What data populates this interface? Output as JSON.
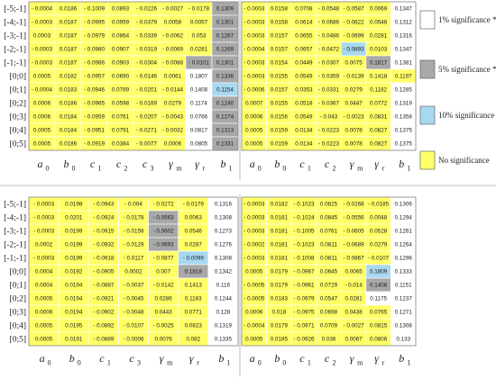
{
  "chart_data": {
    "type": "heatmap",
    "row_labels": [
      "[-5;-1]",
      "[-4;-1]",
      "[-3;-1]",
      "[-2;-1]",
      "[-1;-1]",
      "[0;0]",
      "[0;1]",
      "[0;2]",
      "[0;3]",
      "[0;4]",
      "[0;5]"
    ],
    "col_labels": [
      {
        "base": "a",
        "sub": "0"
      },
      {
        "base": "b",
        "sub": "0"
      },
      {
        "base": "c",
        "sub": "1"
      },
      {
        "base": "c",
        "sub": "2"
      },
      {
        "base": "c",
        "sub": "3"
      },
      {
        "base": "γ",
        "sub": "m"
      },
      {
        "base": "γ",
        "sub": "r"
      },
      {
        "base": "b",
        "sub": "1"
      }
    ],
    "legend": [
      {
        "key": "sig1",
        "label": "1% significance ***",
        "color": "#ffffff"
      },
      {
        "key": "sig5",
        "label": "5% significance **",
        "color": "#a8a8a8"
      },
      {
        "key": "sig10",
        "label": "10% significance *",
        "color": "#a8d8f0"
      },
      {
        "key": "none",
        "label": "No significance",
        "color": "#ffff66"
      }
    ],
    "panels": [
      {
        "name": "top-left",
        "values": [
          [
            "- 0.0004",
            "0.0186",
            "- 0.1009",
            "0.0893",
            "- 0.0226",
            "- 0.0027",
            "- 0.0178",
            "0.1309"
          ],
          [
            "- 0.0003",
            "0.0187",
            "- 0.0995",
            "0.0959",
            "- 0.0379",
            "0.0058",
            "0.0057",
            "0.1301"
          ],
          [
            "0.0003",
            "0.0187",
            "- 0.0979",
            "0.0864",
            "- 0.0339",
            "- 0.0062",
            "0.053",
            "0.1267"
          ],
          [
            "- 0.0003",
            "0.0187",
            "- 0.0980",
            "0.0907",
            "- 0.0319",
            "- 0.0069",
            "0.0281",
            "0.1269"
          ],
          [
            "- 0.0003",
            "0.0187",
            "- 0.0986",
            "0.0903",
            "- 0.0304",
            "- 0.0088",
            "- 0.0101",
            "0.1301"
          ],
          [
            "0.0005",
            "0.0182",
            "- 0.0957",
            "0.0690",
            "- 0.0146",
            "0.0061",
            "0.1807",
            "0.1336"
          ],
          [
            "- 0.0004",
            "0.0183",
            "- 0.0946",
            "0.0789",
            "- 0.0201",
            "- 0.0144",
            "0.1408",
            "0.1154"
          ],
          [
            "0.0006",
            "0.0186",
            "- 0.0965",
            "0.0598",
            "- 0.0169",
            "0.0279",
            "0.1174",
            "0.1240"
          ],
          [
            "0.0006",
            "0.0184",
            "- 0.0959",
            "0.0761",
            "- 0.0207",
            "- 0.0043",
            "0.0766",
            "0.1274"
          ],
          [
            "0.0005",
            "0.0184",
            "- 0.0951",
            "0.0791",
            "- 0.0271",
            "- 0.0032",
            "0.0817",
            "0.1313"
          ],
          [
            "0.0005",
            "0.0186",
            "- 0.0919",
            "0.0384",
            "- 0.0077",
            "0.0006",
            "0.0805",
            "0.1331"
          ]
        ],
        "significance": [
          [
            "none",
            "none",
            "none",
            "none",
            "none",
            "none",
            "none",
            "sig5"
          ],
          [
            "none",
            "none",
            "none",
            "none",
            "none",
            "none",
            "none",
            "sig5"
          ],
          [
            "none",
            "none",
            "none",
            "none",
            "none",
            "none",
            "none",
            "sig5"
          ],
          [
            "none",
            "none",
            "none",
            "none",
            "none",
            "none",
            "none",
            "sig5"
          ],
          [
            "none",
            "none",
            "none",
            "none",
            "none",
            "none",
            "sig5",
            "sig5"
          ],
          [
            "none",
            "none",
            "none",
            "none",
            "none",
            "none",
            "sig1",
            "sig5"
          ],
          [
            "none",
            "none",
            "none",
            "none",
            "none",
            "none",
            "sig1",
            "sig10"
          ],
          [
            "none",
            "none",
            "none",
            "none",
            "none",
            "none",
            "sig1",
            "sig5"
          ],
          [
            "none",
            "none",
            "none",
            "none",
            "none",
            "none",
            "sig1",
            "sig5"
          ],
          [
            "none",
            "none",
            "none",
            "none",
            "none",
            "none",
            "sig1",
            "sig5"
          ],
          [
            "none",
            "none",
            "none",
            "none",
            "none",
            "none",
            "sig1",
            "sig5"
          ]
        ]
      },
      {
        "name": "top-right",
        "values": [
          [
            "- 0.0003",
            "0.0158",
            "0.0708",
            "- 0.0548",
            "- 0.0587",
            "0.0069",
            "0.1347"
          ],
          [
            "- 0.0003",
            "0.0158",
            "0.0614",
            "- 0.0686",
            "- 0.0622",
            "0.0546",
            "0.1312"
          ],
          [
            "- 0.0003",
            "0.0157",
            "0.0655",
            "- 0.0486",
            "- 0.0699",
            "0.0281",
            "0.1316"
          ],
          [
            "- 0.0004",
            "0.0157",
            "0.0657",
            "- 0.0472",
            "- 0.0893",
            "0.0103",
            "0.1347"
          ],
          [
            "- 0.0003",
            "0.0154",
            "0.0449",
            "- 0.0307",
            "0.0075",
            "0.1817",
            "0.1381"
          ],
          [
            "- 0.0003",
            "0.0155",
            "0.0549",
            "- 0.0359",
            "- 0.0139",
            "0.1418",
            "0.1197"
          ],
          [
            "- 0.0006",
            "0.0157",
            "0.0353",
            "- 0.0331",
            "0.0279",
            "0.1182",
            "0.1285"
          ],
          [
            "0.0007",
            "0.0155",
            "0.0518",
            "- 0.0367",
            "0.0447",
            "0.0772",
            "0.1319"
          ],
          [
            "0.0006",
            "0.0156",
            "0.0549",
            "- 0.043",
            "- 0.0023",
            "0.0831",
            "0.1358"
          ],
          [
            "0.0005",
            "0.0159",
            "0.0134",
            "- 0.0223",
            "0.0078",
            "0.0827",
            "0.1375"
          ],
          [
            "0.0005",
            "0.0159",
            "0.0134",
            "- 0.0223",
            "0.0078",
            "0.0827",
            "0.1375"
          ]
        ],
        "col_labels": [
          {
            "base": "a",
            "sub": "0"
          },
          {
            "base": "b",
            "sub": "0"
          },
          {
            "base": "c",
            "sub": "1"
          },
          {
            "base": "c",
            "sub": "2"
          },
          {
            "base": "γ",
            "sub": "m"
          },
          {
            "base": "γ",
            "sub": "r"
          },
          {
            "base": "b",
            "sub": "1"
          }
        ],
        "significance": [
          [
            "none",
            "none",
            "none",
            "none",
            "none",
            "none",
            "sig1"
          ],
          [
            "none",
            "none",
            "none",
            "none",
            "none",
            "none",
            "sig1"
          ],
          [
            "none",
            "none",
            "none",
            "none",
            "none",
            "none",
            "sig1"
          ],
          [
            "none",
            "none",
            "none",
            "none",
            "sig10",
            "none",
            "sig1"
          ],
          [
            "none",
            "none",
            "none",
            "none",
            "none",
            "sig5",
            "sig1"
          ],
          [
            "none",
            "none",
            "none",
            "none",
            "none",
            "none",
            "none"
          ],
          [
            "none",
            "none",
            "none",
            "none",
            "none",
            "none",
            "sig1"
          ],
          [
            "none",
            "none",
            "none",
            "none",
            "none",
            "none",
            "sig1"
          ],
          [
            "none",
            "none",
            "none",
            "none",
            "none",
            "none",
            "sig1"
          ],
          [
            "none",
            "none",
            "none",
            "none",
            "none",
            "none",
            "sig1"
          ],
          [
            "none",
            "none",
            "none",
            "none",
            "none",
            "none",
            "sig1"
          ]
        ]
      },
      {
        "name": "bottom-left",
        "values": [
          [
            "- 0.0003",
            "0.0198",
            "- 0.0943",
            "- 0.004",
            "- 0.0272",
            "- 0.0179",
            "0.1316"
          ],
          [
            "- 0.0003",
            "0.0201",
            "- 0.0924",
            "- 0.0178",
            "- 0.0563",
            "0.0063",
            "0.1308"
          ],
          [
            "- 0.0003",
            "0.0199",
            "- 0.0915",
            "- 0.0158",
            "- 0.0602",
            "0.0546",
            "0.1273"
          ],
          [
            "0.0002",
            "0.0199",
            "- 0.0932",
            "- 0.0129",
            "- 0.0693",
            "0.0287",
            "0.1276"
          ],
          [
            "- 0.0003",
            "0.0199",
            "- 0.0918",
            "- 0.0117",
            "- 0.0877",
            "- 0.0099",
            "0.1308"
          ],
          [
            "0.0004",
            "0.0192",
            "- 0.0905",
            "0.0002",
            "0.007",
            "0.1818",
            "0.1342"
          ],
          [
            "0.0004",
            "0.0194",
            "- 0.0887",
            "- 0.0037",
            "- 0.0142",
            "0.1413",
            "0.116"
          ],
          [
            "0.0005",
            "0.0194",
            "- 0.0921",
            "- 0.0045",
            "0.0286",
            "0.1183",
            "0.1244"
          ],
          [
            "0.0006",
            "0.0194",
            "- 0.0902",
            "- 0.0048",
            "0.0443",
            "0.0771",
            "0.128"
          ],
          [
            "0.0005",
            "0.0195",
            "- 0.0892",
            "- 0.0107",
            "- 0.0025",
            "0.0823",
            "0.1319"
          ],
          [
            "0.0005",
            "0.0191",
            "- 0.0889",
            "- 0.0006",
            "0.0076",
            "0.082",
            "0.1335"
          ]
        ],
        "col_labels": [
          {
            "base": "a",
            "sub": "0"
          },
          {
            "base": "b",
            "sub": "0"
          },
          {
            "base": "c",
            "sub": "1"
          },
          {
            "base": "c",
            "sub": "3"
          },
          {
            "base": "γ",
            "sub": "m"
          },
          {
            "base": "γ",
            "sub": "r"
          },
          {
            "base": "b",
            "sub": "1"
          }
        ],
        "significance": [
          [
            "none",
            "none",
            "none",
            "none",
            "none",
            "none",
            "sig1"
          ],
          [
            "none",
            "none",
            "none",
            "none",
            "sig5",
            "none",
            "sig1"
          ],
          [
            "none",
            "none",
            "none",
            "none",
            "sig5",
            "none",
            "sig1"
          ],
          [
            "none",
            "none",
            "none",
            "none",
            "sig5",
            "none",
            "sig1"
          ],
          [
            "none",
            "none",
            "none",
            "none",
            "none",
            "sig10",
            "sig1"
          ],
          [
            "none",
            "none",
            "none",
            "none",
            "none",
            "sig5",
            "sig1"
          ],
          [
            "none",
            "none",
            "none",
            "none",
            "none",
            "none",
            "sig1"
          ],
          [
            "none",
            "none",
            "none",
            "none",
            "none",
            "none",
            "sig1"
          ],
          [
            "none",
            "none",
            "none",
            "none",
            "none",
            "none",
            "sig1"
          ],
          [
            "none",
            "none",
            "none",
            "none",
            "none",
            "none",
            "sig1"
          ],
          [
            "none",
            "none",
            "none",
            "none",
            "none",
            "none",
            "sig1"
          ]
        ]
      },
      {
        "name": "bottom-right",
        "values": [
          [
            "- 0.0003",
            "0.0182",
            "- 0.1023",
            "0.0825",
            "- 0.0268",
            "- 0.0185",
            "0.1306"
          ],
          [
            "- 0.0003",
            "0.0181",
            "- 0.1024",
            "0.0845",
            "- 0.0556",
            "0.0048",
            "0.1294"
          ],
          [
            "- 0.0003",
            "0.0181",
            "- 0.1005",
            "0.0761",
            "- 0.0605",
            "0.0528",
            "0.1261"
          ],
          [
            "- 0.0002",
            "0.0181",
            "- 0.1023",
            "0.0811",
            "- 0.0689",
            "0.0279",
            "0.1264"
          ],
          [
            "- 0.0003",
            "0.0181",
            "- 0.1008",
            "0.0811",
            "- 0.0867",
            "- 0.0107",
            "0.1296"
          ],
          [
            "0.0005",
            "0.0179",
            "- 0.0967",
            "0.0645",
            "0.0065",
            "0.1809",
            "0.1333"
          ],
          [
            "- 0.0005",
            "0.0179",
            "- 0.0961",
            "0.0729",
            "- 0.014",
            "0.1408",
            "0.1151"
          ],
          [
            "- 0.0005",
            "0.0183",
            "- 0.0979",
            "0.0547",
            "0.0281",
            "0.1175",
            "0.1237"
          ],
          [
            "0.0006",
            "0.018",
            "- 0.0975",
            "0.0698",
            "0.0438",
            "0.0765",
            "0.1271"
          ],
          [
            "- 0.0004",
            "0.0179",
            "- 0.0971",
            "0.0709",
            "- 0.0027",
            "0.0815",
            "0.1308"
          ],
          [
            "0.0005",
            "0.0185",
            "- 0.0926",
            "0.036",
            "0.0067",
            "0.0806",
            "0.133"
          ]
        ],
        "col_labels": [
          {
            "base": "a",
            "sub": "0"
          },
          {
            "base": "b",
            "sub": "0"
          },
          {
            "base": "c",
            "sub": "1"
          },
          {
            "base": "c",
            "sub": "2"
          },
          {
            "base": "γ",
            "sub": "m"
          },
          {
            "base": "γ",
            "sub": "r"
          },
          {
            "base": "b",
            "sub": "1"
          }
        ],
        "significance": [
          [
            "none",
            "none",
            "none",
            "none",
            "none",
            "none",
            "sig1"
          ],
          [
            "none",
            "none",
            "none",
            "none",
            "none",
            "none",
            "sig1"
          ],
          [
            "none",
            "none",
            "none",
            "none",
            "none",
            "none",
            "sig1"
          ],
          [
            "none",
            "none",
            "none",
            "none",
            "none",
            "none",
            "sig1"
          ],
          [
            "none",
            "none",
            "none",
            "none",
            "none",
            "none",
            "sig1"
          ],
          [
            "none",
            "none",
            "none",
            "none",
            "none",
            "sig10",
            "sig1"
          ],
          [
            "none",
            "none",
            "none",
            "none",
            "none",
            "sig5",
            "sig1"
          ],
          [
            "none",
            "none",
            "none",
            "none",
            "none",
            "sig1",
            "sig1"
          ],
          [
            "none",
            "none",
            "none",
            "none",
            "none",
            "none",
            "sig1"
          ],
          [
            "none",
            "none",
            "none",
            "none",
            "none",
            "none",
            "sig1"
          ],
          [
            "none",
            "none",
            "none",
            "none",
            "none",
            "none",
            "sig1"
          ]
        ]
      }
    ]
  }
}
